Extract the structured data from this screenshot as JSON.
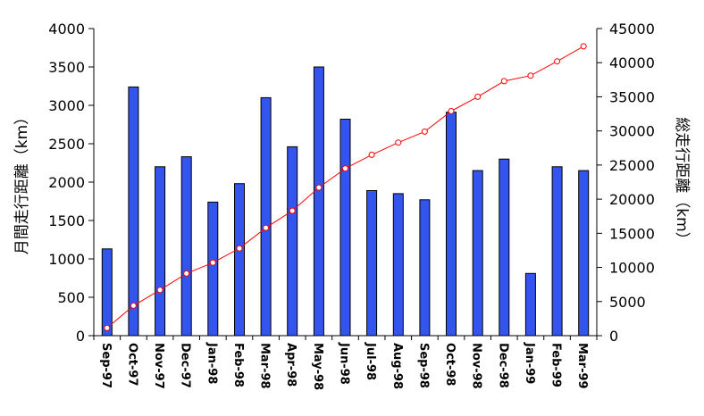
{
  "chart_data": {
    "type": "bar",
    "categories": [
      "Sep-97",
      "Oct-97",
      "Nov-97",
      "Dec-97",
      "Jan-98",
      "Feb-98",
      "Mar-98",
      "Apr-98",
      "May-98",
      "Jun-98",
      "Jul-98",
      "Aug-98",
      "Sep-98",
      "Oct-98",
      "Nov-98",
      "Dec-98",
      "Jan-99",
      "Feb-99",
      "Mar-99"
    ],
    "series": [
      {
        "name": "",
        "type": "bar",
        "axis": "left",
        "color": "#3355ee",
        "values": [
          1130,
          3240,
          2200,
          2330,
          1740,
          1980,
          3100,
          2460,
          3500,
          2820,
          1890,
          1850,
          1770,
          2910,
          2150,
          2300,
          810,
          2200,
          2150
        ]
      },
      {
        "name": "",
        "type": "line",
        "axis": "right",
        "color": "#ff0000",
        "values": [
          1130,
          4400,
          6700,
          9100,
          10700,
          12800,
          15800,
          18300,
          21700,
          24500,
          26500,
          28300,
          29900,
          32900,
          35000,
          37300,
          38100,
          40200,
          42400
        ]
      }
    ],
    "ylabel": "月間走行距離（km）",
    "ylabel_right": "総走行距離（km）",
    "xlabel": "",
    "title": "",
    "ylim": [
      0,
      4000
    ],
    "ylim_right": [
      0,
      45000
    ],
    "yticks": [
      "0",
      "500",
      "1000",
      "1500",
      "2000",
      "2500",
      "3000",
      "3500",
      "4000"
    ],
    "yticks_right": [
      "0",
      "5000",
      "10000",
      "15000",
      "20000",
      "25000",
      "30000",
      "35000",
      "40000",
      "45000"
    ],
    "grid": false,
    "legend": "none"
  }
}
